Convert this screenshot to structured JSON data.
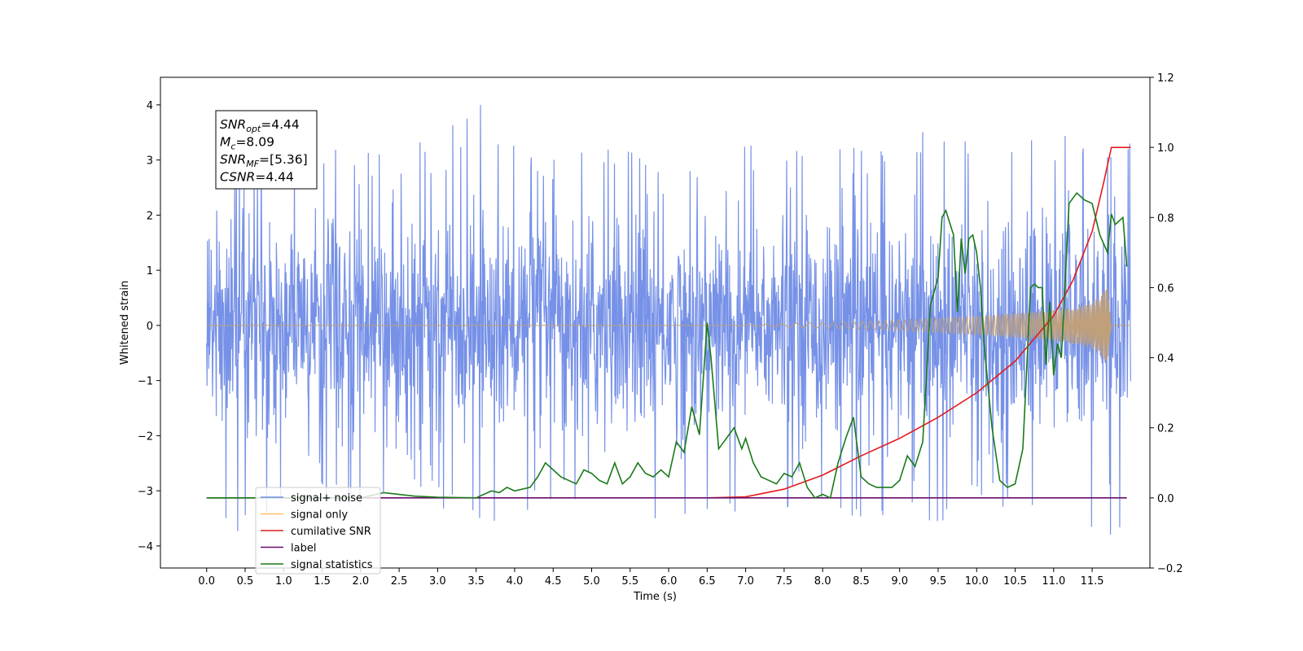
{
  "chart_data": {
    "type": "line",
    "xlabel": "Time (s)",
    "ylabel": "Whitened strain",
    "xlim": [
      -0.6,
      12.25
    ],
    "ylim": [
      -4.4,
      4.5
    ],
    "y2lim": [
      -0.2,
      1.2
    ],
    "grid": false,
    "x_ticks": [
      "0.0",
      "0.5",
      "1.0",
      "1.5",
      "2.0",
      "2.5",
      "3.0",
      "3.5",
      "4.0",
      "4.5",
      "5.0",
      "5.5",
      "6.0",
      "6.5",
      "7.0",
      "7.5",
      "8.0",
      "8.5",
      "9.0",
      "9.5",
      "10.0",
      "10.5",
      "11.0",
      "11.5"
    ],
    "y_ticks": [
      "4",
      "3",
      "2",
      "1",
      "0",
      "−1",
      "−2",
      "−3",
      "−4"
    ],
    "y2_ticks": [
      "1.2",
      "1.0",
      "0.8",
      "0.6",
      "0.4",
      "0.2",
      "0.0",
      "−0.2"
    ],
    "annotation": {
      "lines": [
        {
          "base": "SNR",
          "sub": "opt",
          "value": "=4.44"
        },
        {
          "base": "M",
          "sub": "c",
          "value": "=8.09"
        },
        {
          "base": "SNR",
          "sub": "MF",
          "value": "=[5.36]"
        },
        {
          "base": "CSNR",
          "sub": "",
          "value": "=4.44"
        }
      ]
    },
    "legend": {
      "placement": "lower-left",
      "entries": [
        {
          "label": "signal+ noise",
          "color": "#6f8be6"
        },
        {
          "label": "signal only",
          "color": "#ffbf66"
        },
        {
          "label": "cumilative SNR",
          "color": "#e41a1c"
        },
        {
          "label": "label",
          "color": "#6a0d6a"
        },
        {
          "label": "signal statistics",
          "color": "#1a7a1a"
        }
      ]
    },
    "series": [
      {
        "name": "signal+ noise",
        "axis": "left",
        "color": "#6f8be6",
        "x_range": [
          0.0,
          12.0
        ],
        "envelope_top": [
          2.8,
          3.1,
          3.3,
          3.4,
          3.2,
          3.0,
          3.6,
          4.1,
          3.3,
          3.2,
          3.4,
          3.2,
          3.0,
          3.4,
          3.3,
          3.2,
          3.3,
          3.2,
          3.3,
          3.9,
          3.1,
          3.4,
          3.4,
          3.6,
          3.5
        ],
        "envelope_bottom": [
          -3.9,
          -3.9,
          -3.4,
          -3.2,
          -3.3,
          -3.2,
          -3.3,
          -3.8,
          -3.4,
          -3.4,
          -3.0,
          -3.5,
          -3.8,
          -3.6,
          -3.5,
          -3.4,
          -3.5,
          -3.5,
          -3.4,
          -3.6,
          -3.3,
          -3.3,
          -3.5,
          -3.9,
          -3.9
        ]
      },
      {
        "name": "signal only",
        "axis": "left",
        "color": "#ffbf66",
        "x": [
          0.0,
          6.5,
          7.0,
          7.5,
          8.0,
          8.5,
          9.0,
          9.5,
          10.0,
          10.5,
          11.0,
          11.3,
          11.5,
          11.65,
          11.7,
          11.75,
          12.0
        ],
        "amplitude": [
          0.0,
          0.0,
          0.01,
          0.03,
          0.05,
          0.07,
          0.1,
          0.13,
          0.17,
          0.22,
          0.28,
          0.34,
          0.42,
          0.6,
          0.7,
          0.0,
          0.0
        ]
      },
      {
        "name": "cumilative SNR",
        "axis": "right",
        "color": "#e41a1c",
        "x": [
          6.5,
          7.0,
          7.5,
          8.0,
          8.5,
          9.0,
          9.5,
          10.0,
          10.5,
          11.0,
          11.25,
          11.5,
          11.65,
          11.75,
          12.0
        ],
        "values": [
          0.0,
          0.003,
          0.025,
          0.065,
          0.12,
          0.17,
          0.23,
          0.3,
          0.39,
          0.52,
          0.62,
          0.76,
          0.9,
          1.0,
          1.0
        ]
      },
      {
        "name": "label",
        "axis": "right",
        "color": "#6a0d6a",
        "x": [
          0.0,
          11.95
        ],
        "values": [
          0.0,
          0.0
        ]
      },
      {
        "name": "signal statistics",
        "axis": "right",
        "color": "#1a7a1a",
        "x": [
          0.0,
          2.0,
          2.3,
          2.5,
          2.7,
          3.0,
          3.5,
          3.7,
          3.8,
          3.9,
          4.0,
          4.2,
          4.3,
          4.4,
          4.5,
          4.6,
          4.7,
          4.8,
          4.9,
          5.0,
          5.1,
          5.2,
          5.3,
          5.4,
          5.5,
          5.6,
          5.7,
          5.8,
          5.9,
          6.0,
          6.1,
          6.2,
          6.3,
          6.4,
          6.5,
          6.55,
          6.65,
          6.75,
          6.85,
          6.95,
          7.0,
          7.1,
          7.2,
          7.3,
          7.4,
          7.5,
          7.6,
          7.7,
          7.8,
          7.9,
          8.0,
          8.1,
          8.2,
          8.3,
          8.4,
          8.5,
          8.6,
          8.7,
          8.8,
          8.9,
          9.0,
          9.1,
          9.2,
          9.3,
          9.4,
          9.5,
          9.55,
          9.6,
          9.7,
          9.75,
          9.8,
          9.85,
          9.9,
          9.95,
          10.0,
          10.05,
          10.1,
          10.2,
          10.3,
          10.4,
          10.5,
          10.6,
          10.7,
          10.75,
          10.8,
          10.85,
          10.9,
          10.95,
          11.0,
          11.05,
          11.1,
          11.2,
          11.3,
          11.4,
          11.5,
          11.6,
          11.7,
          11.75,
          11.8,
          11.9,
          11.95
        ],
        "values": [
          0.0,
          0.0,
          0.015,
          0.01,
          0.005,
          0.002,
          0.0,
          0.02,
          0.015,
          0.03,
          0.02,
          0.03,
          0.06,
          0.1,
          0.08,
          0.06,
          0.05,
          0.04,
          0.08,
          0.07,
          0.05,
          0.04,
          0.1,
          0.04,
          0.06,
          0.1,
          0.07,
          0.06,
          0.08,
          0.06,
          0.16,
          0.13,
          0.26,
          0.18,
          0.5,
          0.4,
          0.14,
          0.17,
          0.2,
          0.14,
          0.17,
          0.1,
          0.06,
          0.05,
          0.04,
          0.07,
          0.06,
          0.1,
          0.03,
          0.0,
          0.01,
          0.0,
          0.1,
          0.17,
          0.23,
          0.06,
          0.04,
          0.03,
          0.03,
          0.03,
          0.05,
          0.12,
          0.09,
          0.16,
          0.55,
          0.63,
          0.8,
          0.82,
          0.75,
          0.53,
          0.74,
          0.64,
          0.74,
          0.75,
          0.7,
          0.6,
          0.43,
          0.2,
          0.05,
          0.03,
          0.04,
          0.14,
          0.6,
          0.61,
          0.6,
          0.6,
          0.38,
          0.56,
          0.35,
          0.44,
          0.4,
          0.84,
          0.87,
          0.85,
          0.84,
          0.75,
          0.7,
          0.81,
          0.78,
          0.8,
          0.66
        ]
      }
    ]
  }
}
